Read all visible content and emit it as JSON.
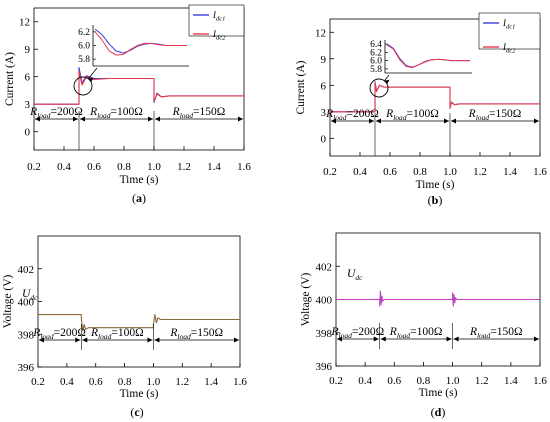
{
  "chart_data": [
    {
      "panel": "a",
      "type": "line",
      "caption": "(a)",
      "xlabel": "Time (s)",
      "ylabel": "Current (A)",
      "xlim": [
        0.2,
        1.6
      ],
      "ylim": [
        -2,
        13.5
      ],
      "xticks": [
        "0.2",
        "0.4",
        "0.6",
        "0.8",
        "1.0",
        "1.2",
        "1.4",
        "1.6"
      ],
      "yticks": [
        "0",
        "3",
        "6",
        "9",
        "12"
      ],
      "legend": [
        "I_dc1",
        "I_dc2"
      ],
      "legend_display": [
        {
          "main": "I",
          "sub": "dc1"
        },
        {
          "main": "I",
          "sub": "dc2"
        }
      ],
      "series_colors": [
        "#3c3cdc",
        "#e83a4a"
      ],
      "series": [
        {
          "name": "I_dc1",
          "x": [
            0.2,
            0.5,
            0.5,
            0.52,
            0.55,
            0.6,
            0.7,
            0.9,
            1.0,
            1.0,
            1.02,
            1.05,
            1.1,
            1.3,
            1.6
          ],
          "y": [
            3.0,
            3.0,
            7.0,
            5.3,
            6.1,
            5.8,
            5.8,
            5.8,
            5.8,
            3.2,
            4.2,
            3.8,
            3.9,
            3.9,
            3.9
          ]
        },
        {
          "name": "I_dc2",
          "x": [
            0.2,
            0.5,
            0.5,
            0.52,
            0.55,
            0.6,
            0.7,
            0.9,
            1.0,
            1.0,
            1.02,
            1.05,
            1.1,
            1.3,
            1.6
          ],
          "y": [
            3.0,
            3.0,
            6.6,
            5.1,
            6.0,
            5.7,
            5.8,
            5.8,
            5.8,
            3.3,
            4.1,
            3.8,
            3.9,
            3.9,
            3.9
          ]
        }
      ],
      "inset": {
        "yticks": [
          "6.2",
          "6.0",
          "5.8"
        ],
        "ylim": [
          5.7,
          6.3
        ],
        "series": [
          {
            "name": "I_dc1",
            "y": [
              6.24,
              6.16,
              6.02,
              5.92,
              5.89,
              5.93,
              5.99,
              6.02,
              6.03,
              6.02,
              6.0,
              6.0,
              6.0,
              6.0
            ]
          },
          {
            "name": "I_dc2",
            "y": [
              6.2,
              6.08,
              5.92,
              5.86,
              5.87,
              5.94,
              6.0,
              6.03,
              6.03,
              6.01,
              6.0,
              6.0,
              6.0,
              6.0
            ]
          }
        ]
      },
      "annotations": [
        {
          "label": "R_load=200Ω",
          "main": "R",
          "sub": "load",
          "rest": "=200Ω"
        },
        {
          "label": "R_load=100Ω",
          "main": "R",
          "sub": "load",
          "rest": "=100Ω"
        },
        {
          "label": "R_load=150Ω",
          "main": "R",
          "sub": "load",
          "rest": "=150Ω"
        }
      ]
    },
    {
      "panel": "b",
      "type": "line",
      "caption": "(b)",
      "xlabel": "Time (s)",
      "ylabel": "Current (A)",
      "xlim": [
        0.2,
        1.6
      ],
      "ylim": [
        -2,
        13.5
      ],
      "xticks": [
        "0.2",
        "0.4",
        "0.6",
        "0.8",
        "1.0",
        "1.2",
        "1.4",
        "1.6"
      ],
      "yticks": [
        "0",
        "3",
        "6",
        "9",
        "12"
      ],
      "legend": [
        "I_dc1",
        "I_dc2"
      ],
      "legend_display": [
        {
          "main": "I",
          "sub": "dc1"
        },
        {
          "main": "I",
          "sub": "dc2"
        }
      ],
      "series_colors": [
        "#3c3cdc",
        "#e83a4a"
      ],
      "series": [
        {
          "name": "I_dc1",
          "x": [
            0.2,
            0.5,
            0.5,
            0.51,
            0.53,
            0.56,
            0.6,
            0.8,
            1.0,
            1.0,
            1.01,
            1.03,
            1.06,
            1.3,
            1.6
          ],
          "y": [
            3.0,
            3.0,
            6.4,
            5.4,
            6.0,
            5.8,
            5.8,
            5.8,
            5.8,
            3.4,
            4.1,
            3.8,
            3.9,
            3.9,
            3.9
          ]
        },
        {
          "name": "I_dc2",
          "x": [
            0.2,
            0.5,
            0.5,
            0.51,
            0.53,
            0.56,
            0.6,
            0.8,
            1.0,
            1.0,
            1.01,
            1.03,
            1.06,
            1.3,
            1.6
          ],
          "y": [
            3.0,
            3.0,
            6.3,
            5.3,
            6.0,
            5.8,
            5.8,
            5.8,
            5.8,
            3.4,
            4.1,
            3.8,
            3.9,
            3.9,
            3.9
          ]
        }
      ],
      "inset": {
        "yticks": [
          "6.4",
          "6.2",
          "6.0",
          "5.8"
        ],
        "ylim": [
          5.7,
          6.5
        ],
        "series": [
          {
            "name": "I_dc1",
            "y": [
              6.4,
              6.3,
              6.05,
              5.88,
              5.84,
              5.9,
              5.98,
              6.02,
              6.03,
              6.02,
              6.0,
              6.0,
              6.0,
              6.0
            ]
          },
          {
            "name": "I_dc2",
            "y": [
              6.38,
              6.28,
              6.02,
              5.86,
              5.83,
              5.9,
              5.97,
              6.02,
              6.03,
              6.02,
              6.0,
              6.0,
              6.0,
              6.0
            ]
          }
        ]
      },
      "annotations": [
        {
          "label": "R_load=200Ω",
          "main": "R",
          "sub": "load",
          "rest": "=200Ω"
        },
        {
          "label": "R_load=100Ω",
          "main": "R",
          "sub": "load",
          "rest": "=100Ω"
        },
        {
          "label": "R_load=150Ω",
          "main": "R",
          "sub": "load",
          "rest": "=150Ω"
        }
      ]
    },
    {
      "panel": "c",
      "type": "line",
      "caption": "(c)",
      "xlabel": "Time (s)",
      "ylabel": "Voltage (V)",
      "xlim": [
        0.2,
        1.6
      ],
      "ylim": [
        396,
        404
      ],
      "xticks": [
        "0.2",
        "0.4",
        "0.6",
        "0.8",
        "1.0",
        "1.2",
        "1.4",
        "1.6"
      ],
      "yticks": [
        "396",
        "398",
        "400",
        "402"
      ],
      "series_label": {
        "label": "U_dc",
        "main": "U",
        "sub": "dc"
      },
      "series_colors": [
        "#8a6a3a"
      ],
      "series": [
        {
          "name": "U_dc",
          "x": [
            0.2,
            0.5,
            0.5,
            0.51,
            0.52,
            0.53,
            0.55,
            0.6,
            0.8,
            1.0,
            1.0,
            1.01,
            1.02,
            1.03,
            1.05,
            1.1,
            1.6
          ],
          "y": [
            399.2,
            399.2,
            399.0,
            398.2,
            398.6,
            398.3,
            398.4,
            398.4,
            398.4,
            398.4,
            398.6,
            399.2,
            398.7,
            399.0,
            398.9,
            398.9,
            398.9
          ]
        }
      ],
      "annotations": [
        {
          "label": "R_load=200Ω",
          "main": "R",
          "sub": "load",
          "rest": "=200Ω"
        },
        {
          "label": "R_load=100Ω",
          "main": "R",
          "sub": "load",
          "rest": "=100Ω"
        },
        {
          "label": "R_load=150Ω",
          "main": "R",
          "sub": "load",
          "rest": "=150Ω"
        }
      ]
    },
    {
      "panel": "d",
      "type": "line",
      "caption": "(d)",
      "xlabel": "Time (s)",
      "ylabel": "Voltage (V)",
      "xlim": [
        0.2,
        1.6
      ],
      "ylim": [
        396,
        404
      ],
      "xticks": [
        "0.2",
        "0.4",
        "0.6",
        "0.8",
        "1.0",
        "1.2",
        "1.4",
        "1.6"
      ],
      "yticks": [
        "396",
        "398",
        "400",
        "402"
      ],
      "series_label": {
        "label": "U_dc",
        "main": "U",
        "sub": "dc"
      },
      "series_colors": [
        "#c040c0"
      ],
      "series": [
        {
          "name": "U_dc",
          "x": [
            0.2,
            0.5,
            0.5,
            0.505,
            0.51,
            0.515,
            0.52,
            0.53,
            0.55,
            0.8,
            1.0,
            1.0,
            1.005,
            1.01,
            1.015,
            1.02,
            1.03,
            1.05,
            1.6
          ],
          "y": [
            400,
            400,
            399.6,
            400.5,
            399.7,
            400.2,
            399.9,
            400,
            400,
            400,
            400,
            400.4,
            399.6,
            400.3,
            399.8,
            400.1,
            400,
            400,
            400
          ]
        }
      ],
      "annotations": [
        {
          "label": "R_load=200Ω",
          "main": "R",
          "sub": "load",
          "rest": "=200Ω"
        },
        {
          "label": "R_load=100Ω",
          "main": "R",
          "sub": "load",
          "rest": "=100Ω"
        },
        {
          "label": "R_load=150Ω",
          "main": "R",
          "sub": "load",
          "rest": "=150Ω"
        }
      ]
    }
  ]
}
